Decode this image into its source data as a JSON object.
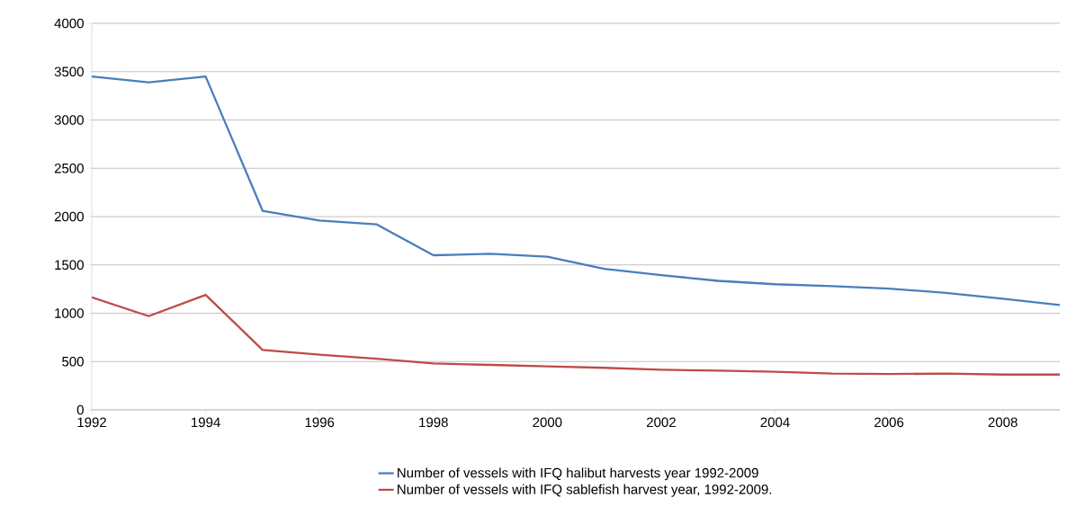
{
  "chart_data": {
    "type": "line",
    "x": [
      1992,
      1993,
      1994,
      1995,
      1996,
      1997,
      1998,
      1999,
      2000,
      2001,
      2002,
      2003,
      2004,
      2005,
      2006,
      2007,
      2008,
      2009
    ],
    "series": [
      {
        "name": "Number of vessels with IFQ halibut harvests year 1992-2009",
        "color": "#4a7ebb",
        "values": [
          3450,
          3390,
          3450,
          2060,
          1960,
          1920,
          1600,
          1615,
          1585,
          1460,
          1395,
          1335,
          1300,
          1280,
          1255,
          1210,
          1150,
          1085
        ]
      },
      {
        "name": "Number of vessels with IFQ sablefish harvest year, 1992-2009.",
        "color": "#be4b48",
        "values": [
          1165,
          970,
          1190,
          620,
          570,
          530,
          480,
          465,
          450,
          435,
          415,
          405,
          395,
          375,
          370,
          375,
          365,
          365
        ]
      }
    ],
    "xlim": [
      1992,
      2009
    ],
    "xticks": [
      1992,
      1994,
      1996,
      1998,
      2000,
      2002,
      2004,
      2006,
      2008
    ],
    "ylim": [
      0,
      4000
    ],
    "yticks": [
      0,
      500,
      1000,
      1500,
      2000,
      2500,
      3000,
      3500,
      4000
    ],
    "grid": "y",
    "legend": "bottom",
    "marker": "none",
    "line_style": "solid"
  }
}
